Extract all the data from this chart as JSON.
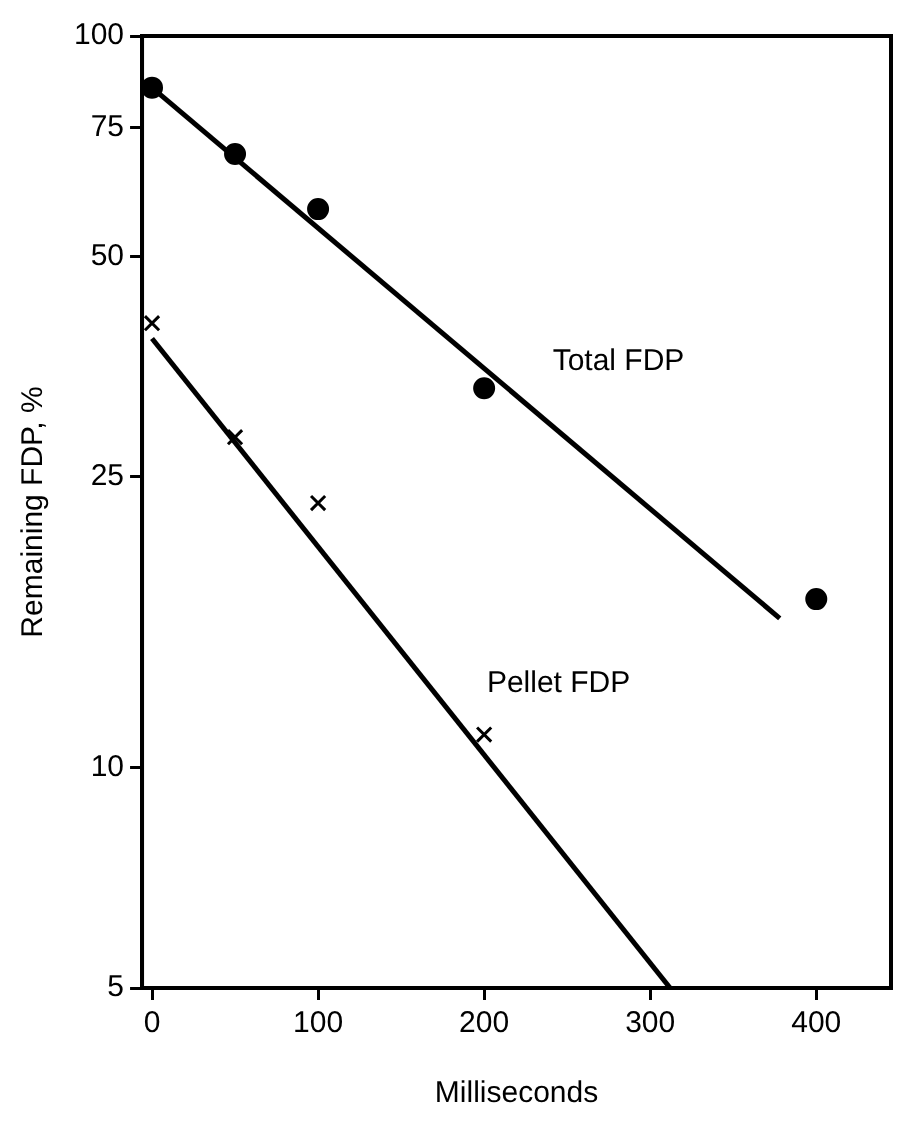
{
  "chart_data": {
    "type": "scatter",
    "xlabel": "Milliseconds",
    "ylabel": "Remaining FDP, %",
    "xlim": [
      -6,
      445
    ],
    "xticks": [
      0,
      100,
      200,
      300,
      400
    ],
    "ylim": [
      5,
      100
    ],
    "yticks": [
      5,
      10,
      25,
      50,
      75,
      100
    ],
    "log": "y",
    "grid": false,
    "legend": false,
    "series": [
      {
        "color": "#000000",
        "marker": "circle",
        "x": [
          0,
          50,
          100,
          200,
          400
        ],
        "values": [
          85,
          69,
          58,
          33,
          17
        ]
      },
      {
        "color": "#000000",
        "marker": "cross",
        "x": [
          0,
          50,
          100,
          200
        ],
        "values": [
          40.5,
          28.3,
          23,
          11.1
        ]
      },
      {
        "type": "line",
        "name": "Total FDP",
        "color": "#000000",
        "marker": "none",
        "line_style": "solid",
        "x": [
          0,
          378
        ],
        "values": [
          85,
          16
        ]
      },
      {
        "type": "line",
        "name": "Pellet FDP",
        "color": "#000000",
        "marker": "none",
        "line_style": "solid",
        "x": [
          0,
          312
        ],
        "values": [
          38.6,
          5
        ]
      }
    ]
  }
}
